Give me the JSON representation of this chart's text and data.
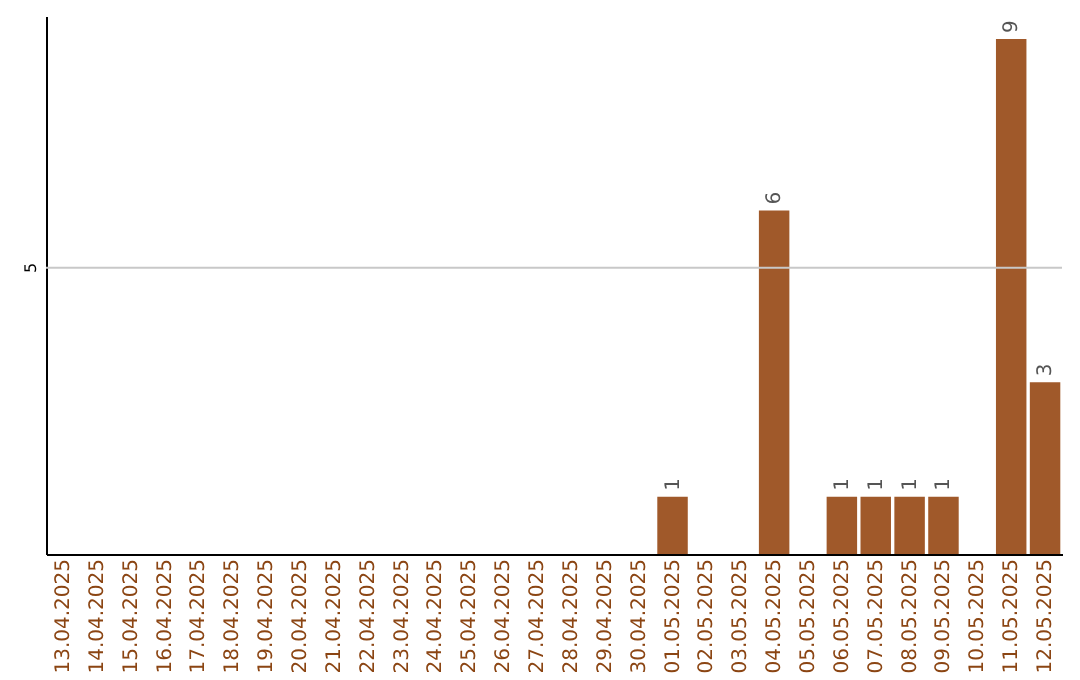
{
  "chart_data": {
    "type": "bar",
    "categories": [
      "13.04.2025",
      "14.04.2025",
      "15.04.2025",
      "16.04.2025",
      "17.04.2025",
      "18.04.2025",
      "19.04.2025",
      "20.04.2025",
      "21.04.2025",
      "22.04.2025",
      "23.04.2025",
      "24.04.2025",
      "25.04.2025",
      "26.04.2025",
      "27.04.2025",
      "28.04.2025",
      "29.04.2025",
      "30.04.2025",
      "01.05.2025",
      "02.05.2025",
      "03.05.2025",
      "04.05.2025",
      "05.05.2025",
      "06.05.2025",
      "07.05.2025",
      "08.05.2025",
      "09.05.2025",
      "10.05.2025",
      "11.05.2025",
      "12.05.2025"
    ],
    "values": [
      null,
      null,
      null,
      null,
      null,
      null,
      null,
      null,
      null,
      null,
      null,
      null,
      null,
      null,
      null,
      null,
      null,
      null,
      1,
      null,
      null,
      6,
      null,
      1,
      1,
      1,
      1,
      null,
      9,
      3
    ],
    "value_labels": [
      null,
      null,
      null,
      null,
      null,
      null,
      null,
      null,
      null,
      null,
      null,
      null,
      null,
      null,
      null,
      null,
      null,
      null,
      "1",
      null,
      null,
      "6",
      null,
      "1",
      "1",
      "1",
      "1",
      null,
      "9",
      "3"
    ],
    "color": "#a0592a",
    "ylim": [
      0,
      9.4
    ],
    "ref_lines": [
      {
        "axis": "y",
        "value": 5,
        "label": "5",
        "color": "#c8c8c8"
      }
    ]
  }
}
